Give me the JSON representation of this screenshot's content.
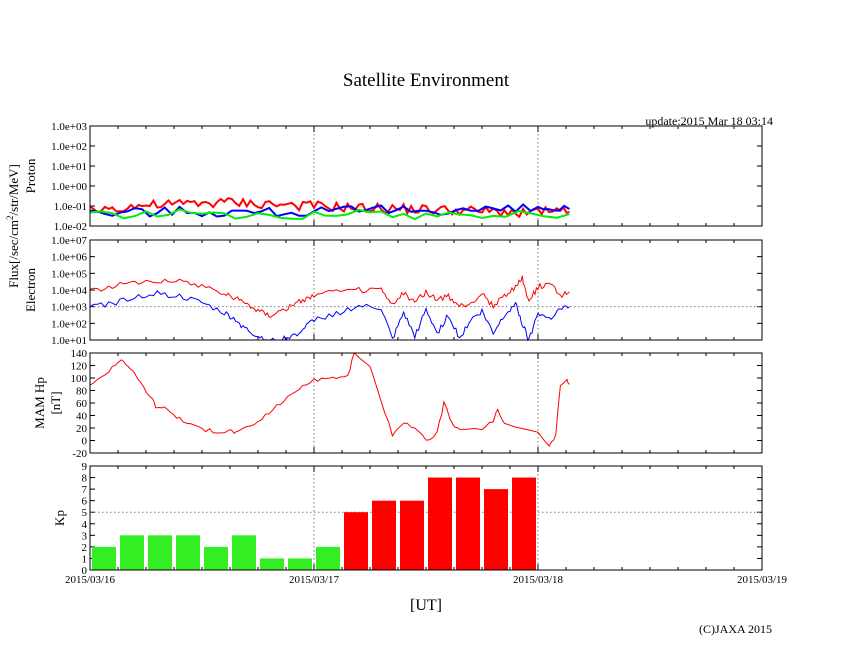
{
  "chart_data": {
    "title": "Satellite Environment",
    "update": "update:2015 Mar 18 03:14",
    "copyright": "(C)JAXA 2015",
    "xlabel": "[UT]",
    "x_ticks": [
      "2015/03/16",
      "2015/03/17",
      "2015/03/18",
      "2015/03/19"
    ],
    "x_range_days": [
      0,
      3
    ],
    "flux_label": "Flux[/sec/cm",
    "flux_label_sup": "2",
    "flux_label_tail": "/str/MeV]",
    "panels": [
      {
        "id": "proton",
        "type": "line",
        "ylabel": [
          "Proton"
        ],
        "yscale": "log",
        "ylim_exp": [
          -2,
          3
        ],
        "y_ticks": [
          "1.0e-02",
          "1.0e-01",
          "1.0e+00",
          "1.0e+01",
          "1.0e+02",
          "1.0e+03"
        ],
        "series": [
          {
            "name": "proton-red",
            "color": "#ff0000",
            "points": [
              [
                0,
                -1.2
              ],
              [
                0.1,
                -1.1
              ],
              [
                0.2,
                -1.0
              ],
              [
                0.3,
                -0.95
              ],
              [
                0.4,
                -0.9
              ],
              [
                0.5,
                -0.85
              ],
              [
                0.6,
                -0.8
              ],
              [
                0.7,
                -0.85
              ],
              [
                0.8,
                -0.9
              ],
              [
                0.9,
                -0.95
              ],
              [
                1.0,
                -1.0
              ],
              [
                1.1,
                -1.05
              ],
              [
                1.2,
                -1.1
              ],
              [
                1.3,
                -1.12
              ],
              [
                1.4,
                -1.15
              ],
              [
                1.5,
                -1.18
              ],
              [
                1.6,
                -1.2
              ],
              [
                1.7,
                -1.25
              ],
              [
                1.8,
                -1.28
              ],
              [
                1.9,
                -1.3
              ],
              [
                2.0,
                -1.3
              ],
              [
                2.1,
                -1.32
              ],
              [
                2.14,
                -1.3
              ]
            ]
          },
          {
            "name": "proton-blue",
            "color": "#0000ff",
            "points": [
              [
                0,
                -1.35
              ],
              [
                0.2,
                -1.3
              ],
              [
                0.4,
                -1.25
              ],
              [
                0.6,
                -1.3
              ],
              [
                0.8,
                -1.3
              ],
              [
                1.0,
                -1.3
              ],
              [
                1.2,
                -1.25
              ],
              [
                1.4,
                -1.2
              ],
              [
                1.6,
                -1.2
              ],
              [
                1.8,
                -1.2
              ],
              [
                2.0,
                -1.15
              ],
              [
                2.14,
                -1.15
              ]
            ]
          },
          {
            "name": "proton-green",
            "color": "#00ee00",
            "points": [
              [
                0,
                -1.38
              ],
              [
                0.3,
                -1.38
              ],
              [
                0.6,
                -1.4
              ],
              [
                0.9,
                -1.4
              ],
              [
                1.2,
                -1.4
              ],
              [
                1.5,
                -1.42
              ],
              [
                1.8,
                -1.42
              ],
              [
                2.14,
                -1.4
              ]
            ]
          }
        ]
      },
      {
        "id": "electron",
        "type": "line",
        "ylabel": [
          "Electron"
        ],
        "yscale": "log",
        "ylim_exp": [
          1,
          7
        ],
        "y_ticks": [
          "1.0e+01",
          "1.0e+02",
          "1.0e+03",
          "1.0e+04",
          "1.0e+05",
          "1.0e+06",
          "1.0e+07"
        ],
        "series": [
          {
            "name": "electron-red",
            "color": "#ff0000",
            "points": [
              [
                0,
                4.0
              ],
              [
                0.1,
                4.2
              ],
              [
                0.2,
                4.5
              ],
              [
                0.3,
                4.6
              ],
              [
                0.4,
                4.5
              ],
              [
                0.5,
                4.3
              ],
              [
                0.6,
                3.8
              ],
              [
                0.65,
                3.5
              ],
              [
                0.7,
                3.2
              ],
              [
                0.75,
                2.8
              ],
              [
                0.8,
                2.5
              ],
              [
                0.85,
                2.8
              ],
              [
                0.9,
                3.0
              ],
              [
                0.95,
                3.4
              ],
              [
                1.0,
                3.7
              ],
              [
                1.1,
                3.9
              ],
              [
                1.2,
                4.0
              ],
              [
                1.3,
                4.0
              ],
              [
                1.35,
                3.1
              ],
              [
                1.4,
                3.8
              ],
              [
                1.45,
                3.3
              ],
              [
                1.5,
                3.9
              ],
              [
                1.55,
                3.4
              ],
              [
                1.6,
                3.6
              ],
              [
                1.65,
                3.0
              ],
              [
                1.7,
                3.2
              ],
              [
                1.75,
                3.8
              ],
              [
                1.8,
                3.0
              ],
              [
                1.85,
                3.7
              ],
              [
                1.9,
                4.2
              ],
              [
                1.93,
                4.7
              ],
              [
                1.96,
                3.3
              ],
              [
                2.0,
                4.2
              ],
              [
                2.05,
                4.4
              ],
              [
                2.1,
                3.7
              ],
              [
                2.14,
                3.9
              ]
            ]
          },
          {
            "name": "electron-blue",
            "color": "#0000ff",
            "points": [
              [
                0,
                3.0
              ],
              [
                0.1,
                3.2
              ],
              [
                0.2,
                3.6
              ],
              [
                0.3,
                3.8
              ],
              [
                0.4,
                3.6
              ],
              [
                0.5,
                3.2
              ],
              [
                0.6,
                2.6
              ],
              [
                0.65,
                2.2
              ],
              [
                0.7,
                1.6
              ],
              [
                0.75,
                1.2
              ],
              [
                0.8,
                1.0
              ],
              [
                0.85,
                1.0
              ],
              [
                0.9,
                1.2
              ],
              [
                0.95,
                1.6
              ],
              [
                1.0,
                2.2
              ],
              [
                1.1,
                2.6
              ],
              [
                1.2,
                3.0
              ],
              [
                1.3,
                2.9
              ],
              [
                1.35,
                1.0
              ],
              [
                1.4,
                2.6
              ],
              [
                1.45,
                1.2
              ],
              [
                1.5,
                2.8
              ],
              [
                1.55,
                1.4
              ],
              [
                1.6,
                2.5
              ],
              [
                1.65,
                1.1
              ],
              [
                1.7,
                2.2
              ],
              [
                1.75,
                2.7
              ],
              [
                1.8,
                1.4
              ],
              [
                1.85,
                2.5
              ],
              [
                1.9,
                3.2
              ],
              [
                1.93,
                2.0
              ],
              [
                1.96,
                1.0
              ],
              [
                2.0,
                2.7
              ],
              [
                2.05,
                2.3
              ],
              [
                2.1,
                2.9
              ],
              [
                2.14,
                3.0
              ]
            ]
          }
        ]
      },
      {
        "id": "mam",
        "type": "line",
        "ylabel": [
          "MAM Hp",
          "[nT]"
        ],
        "yscale": "linear",
        "ylim": [
          -20,
          140
        ],
        "y_ticks": [
          "-20",
          "0",
          "20",
          "40",
          "60",
          "80",
          "100",
          "120",
          "140"
        ],
        "y_tick_values": [
          -20,
          0,
          20,
          40,
          60,
          80,
          100,
          120,
          140
        ],
        "series": [
          {
            "name": "mam-red",
            "color": "#ff0000",
            "points": [
              [
                0,
                90
              ],
              [
                0.05,
                100
              ],
              [
                0.1,
                118
              ],
              [
                0.14,
                130
              ],
              [
                0.17,
                120
              ],
              [
                0.2,
                105
              ],
              [
                0.24,
                85
              ],
              [
                0.28,
                65
              ],
              [
                0.3,
                50
              ],
              [
                0.33,
                55
              ],
              [
                0.36,
                45
              ],
              [
                0.4,
                35
              ],
              [
                0.45,
                25
              ],
              [
                0.5,
                18
              ],
              [
                0.55,
                15
              ],
              [
                0.6,
                14
              ],
              [
                0.63,
                16
              ],
              [
                0.65,
                12
              ],
              [
                0.7,
                20
              ],
              [
                0.75,
                30
              ],
              [
                0.8,
                45
              ],
              [
                0.85,
                60
              ],
              [
                0.9,
                73
              ],
              [
                0.95,
                88
              ],
              [
                1.0,
                96
              ],
              [
                1.05,
                100
              ],
              [
                1.1,
                101
              ],
              [
                1.15,
                102
              ],
              [
                1.18,
                140
              ],
              [
                1.25,
                120
              ],
              [
                1.3,
                60
              ],
              [
                1.35,
                10
              ],
              [
                1.4,
                30
              ],
              [
                1.45,
                20
              ],
              [
                1.5,
                0
              ],
              [
                1.55,
                12
              ],
              [
                1.58,
                60
              ],
              [
                1.62,
                25
              ],
              [
                1.65,
                15
              ],
              [
                1.75,
                20
              ],
              [
                1.8,
                30
              ],
              [
                1.82,
                50
              ],
              [
                1.85,
                27
              ],
              [
                2.0,
                15
              ],
              [
                2.05,
                -10
              ],
              [
                2.08,
                10
              ],
              [
                2.1,
                90
              ],
              [
                2.13,
                95
              ],
              [
                2.14,
                90
              ]
            ]
          }
        ]
      },
      {
        "id": "kp",
        "type": "bar",
        "ylabel": [
          "Kp"
        ],
        "ylim": [
          0,
          9
        ],
        "y_ticks": [
          "0",
          "1",
          "2",
          "3",
          "4",
          "5",
          "6",
          "7",
          "8",
          "9"
        ],
        "bar_width_days": 0.125,
        "threshold": 5,
        "color_below": "#33ee22",
        "color_above": "#ff0000",
        "values": [
          2,
          3,
          3,
          3,
          2,
          3,
          1,
          1,
          2,
          5,
          6,
          6,
          8,
          8,
          7,
          8
        ]
      }
    ]
  }
}
